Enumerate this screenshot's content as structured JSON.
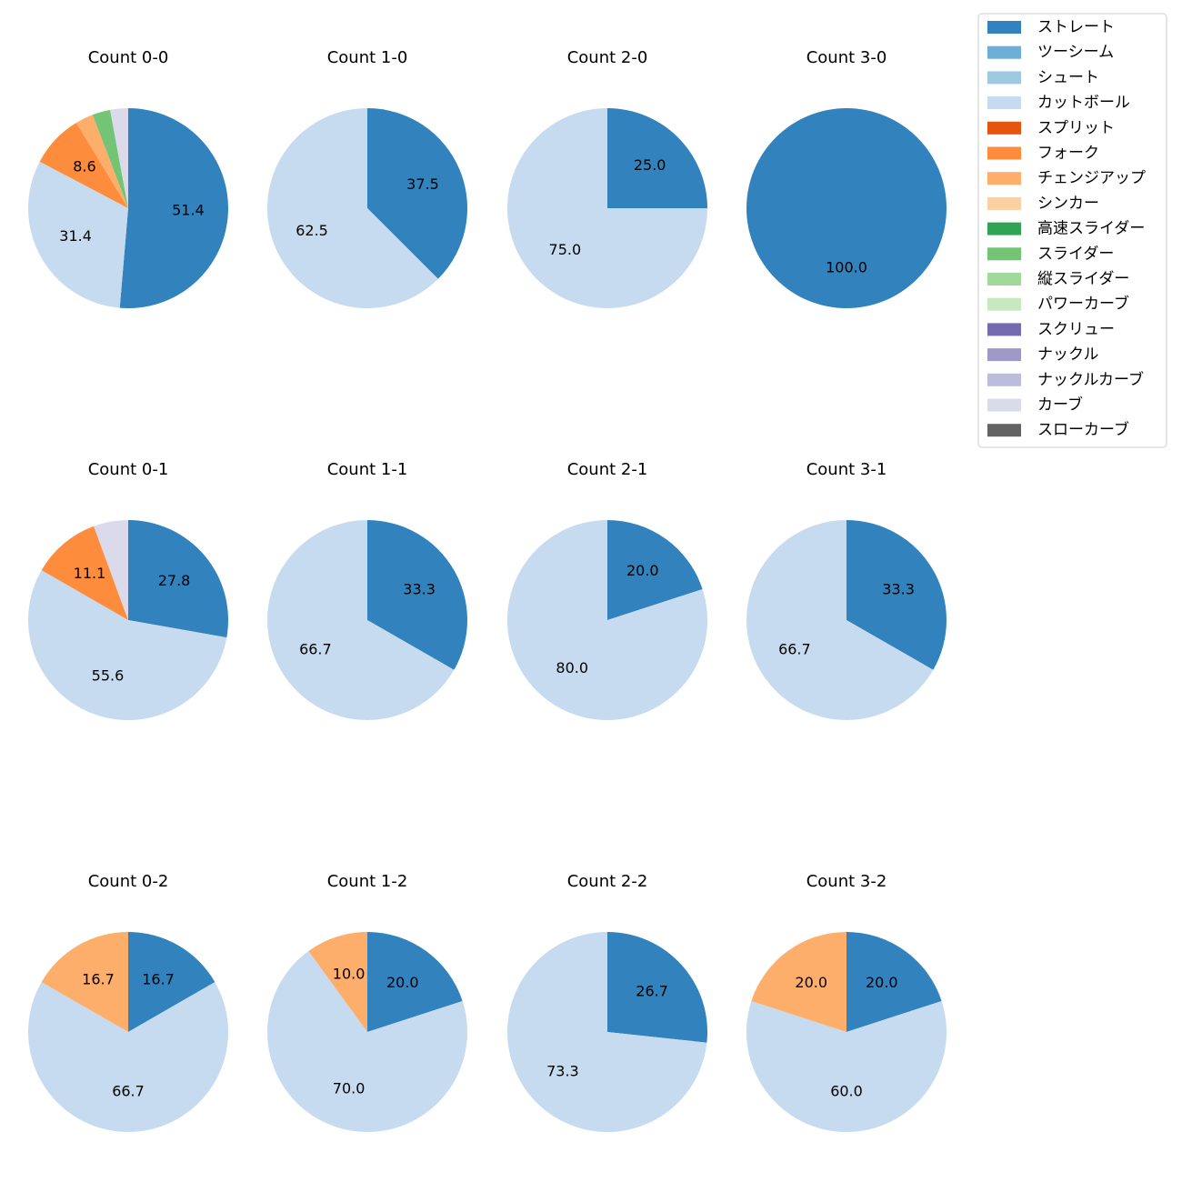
{
  "legend": {
    "items": [
      {
        "label": "ストレート",
        "color": "#3182bd"
      },
      {
        "label": "ツーシーム",
        "color": "#6baed6"
      },
      {
        "label": "シュート",
        "color": "#9ecae1"
      },
      {
        "label": "カットボール",
        "color": "#c6dbef"
      },
      {
        "label": "スプリット",
        "color": "#e6550d"
      },
      {
        "label": "フォーク",
        "color": "#fd8d3c"
      },
      {
        "label": "チェンジアップ",
        "color": "#fdae6b"
      },
      {
        "label": "シンカー",
        "color": "#fdd0a2"
      },
      {
        "label": "高速スライダー",
        "color": "#31a354"
      },
      {
        "label": "スライダー",
        "color": "#74c476"
      },
      {
        "label": "縦スライダー",
        "color": "#a1d99b"
      },
      {
        "label": "パワーカーブ",
        "color": "#c7e9c0"
      },
      {
        "label": "スクリュー",
        "color": "#756bb1"
      },
      {
        "label": "ナックル",
        "color": "#9e9ac8"
      },
      {
        "label": "ナックルカーブ",
        "color": "#bcbddc"
      },
      {
        "label": "カーブ",
        "color": "#dadaeb"
      },
      {
        "label": "スローカーブ",
        "color": "#636363"
      }
    ]
  },
  "chart_data": [
    {
      "type": "pie",
      "title": "Count 0-0",
      "slices": [
        {
          "name": "ストレート",
          "value": 51.4,
          "label": "51.4"
        },
        {
          "name": "カットボール",
          "value": 31.4,
          "label": "31.4"
        },
        {
          "name": "フォーク",
          "value": 8.6,
          "label": "8.6"
        },
        {
          "name": "チェンジアップ",
          "value": 2.9,
          "label": ""
        },
        {
          "name": "スライダー",
          "value": 2.9,
          "label": ""
        },
        {
          "name": "カーブ",
          "value": 2.9,
          "label": ""
        }
      ]
    },
    {
      "type": "pie",
      "title": "Count 1-0",
      "slices": [
        {
          "name": "ストレート",
          "value": 37.5,
          "label": "37.5"
        },
        {
          "name": "カットボール",
          "value": 62.5,
          "label": "62.5"
        }
      ]
    },
    {
      "type": "pie",
      "title": "Count 2-0",
      "slices": [
        {
          "name": "ストレート",
          "value": 25.0,
          "label": "25.0"
        },
        {
          "name": "カットボール",
          "value": 75.0,
          "label": "75.0"
        }
      ]
    },
    {
      "type": "pie",
      "title": "Count 3-0",
      "slices": [
        {
          "name": "ストレート",
          "value": 100.0,
          "label": "100.0"
        }
      ]
    },
    {
      "type": "pie",
      "title": "Count 0-1",
      "slices": [
        {
          "name": "ストレート",
          "value": 27.8,
          "label": "27.8"
        },
        {
          "name": "カットボール",
          "value": 55.6,
          "label": "55.6"
        },
        {
          "name": "フォーク",
          "value": 11.1,
          "label": "11.1"
        },
        {
          "name": "カーブ",
          "value": 5.6,
          "label": ""
        }
      ]
    },
    {
      "type": "pie",
      "title": "Count 1-1",
      "slices": [
        {
          "name": "ストレート",
          "value": 33.3,
          "label": "33.3"
        },
        {
          "name": "カットボール",
          "value": 66.7,
          "label": "66.7"
        }
      ]
    },
    {
      "type": "pie",
      "title": "Count 2-1",
      "slices": [
        {
          "name": "ストレート",
          "value": 20.0,
          "label": "20.0"
        },
        {
          "name": "カットボール",
          "value": 80.0,
          "label": "80.0"
        }
      ]
    },
    {
      "type": "pie",
      "title": "Count 3-1",
      "slices": [
        {
          "name": "ストレート",
          "value": 33.3,
          "label": "33.3"
        },
        {
          "name": "カットボール",
          "value": 66.7,
          "label": "66.7"
        }
      ]
    },
    {
      "type": "pie",
      "title": "Count 0-2",
      "slices": [
        {
          "name": "ストレート",
          "value": 16.7,
          "label": "16.7"
        },
        {
          "name": "カットボール",
          "value": 66.7,
          "label": "66.7"
        },
        {
          "name": "チェンジアップ",
          "value": 16.7,
          "label": "16.7"
        }
      ]
    },
    {
      "type": "pie",
      "title": "Count 1-2",
      "slices": [
        {
          "name": "ストレート",
          "value": 20.0,
          "label": "20.0"
        },
        {
          "name": "カットボール",
          "value": 70.0,
          "label": "70.0"
        },
        {
          "name": "チェンジアップ",
          "value": 10.0,
          "label": "10.0"
        }
      ]
    },
    {
      "type": "pie",
      "title": "Count 2-2",
      "slices": [
        {
          "name": "ストレート",
          "value": 26.7,
          "label": "26.7"
        },
        {
          "name": "カットボール",
          "value": 73.3,
          "label": "73.3"
        }
      ]
    },
    {
      "type": "pie",
      "title": "Count 3-2",
      "slices": [
        {
          "name": "ストレート",
          "value": 20.0,
          "label": "20.0"
        },
        {
          "name": "カットボール",
          "value": 60.0,
          "label": "60.0"
        },
        {
          "name": "チェンジアップ",
          "value": 20.0,
          "label": "20.0"
        }
      ]
    }
  ]
}
